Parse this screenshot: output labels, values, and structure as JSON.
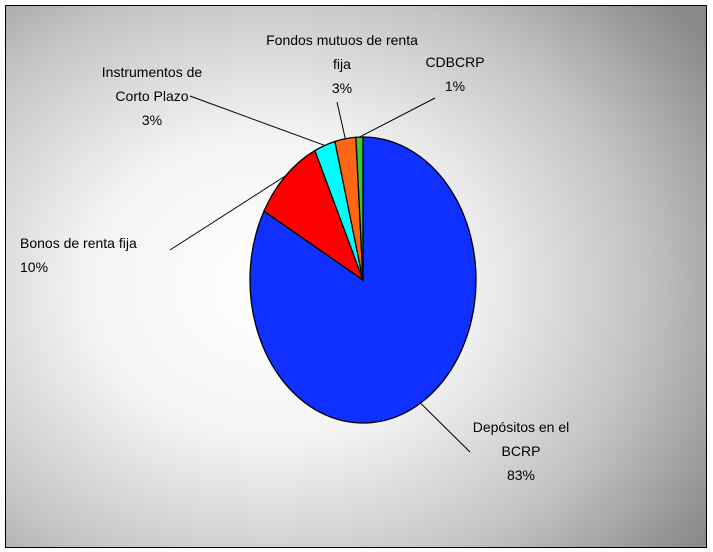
{
  "chart_data": {
    "type": "pie",
    "categories": [
      "Depósitos en el BCRP",
      "Bonos de renta fija",
      "Instrumentos de Corto Plazo",
      "Fondos mutuos de renta fija",
      "CDBCRP"
    ],
    "values": [
      83,
      10,
      3,
      3,
      1
    ],
    "value_labels": [
      "83%",
      "10%",
      "3%",
      "3%",
      "1%"
    ],
    "colors": [
      "#1030ff",
      "#ff0000",
      "#00ffff",
      "#ff6615",
      "#33cc33"
    ]
  }
}
